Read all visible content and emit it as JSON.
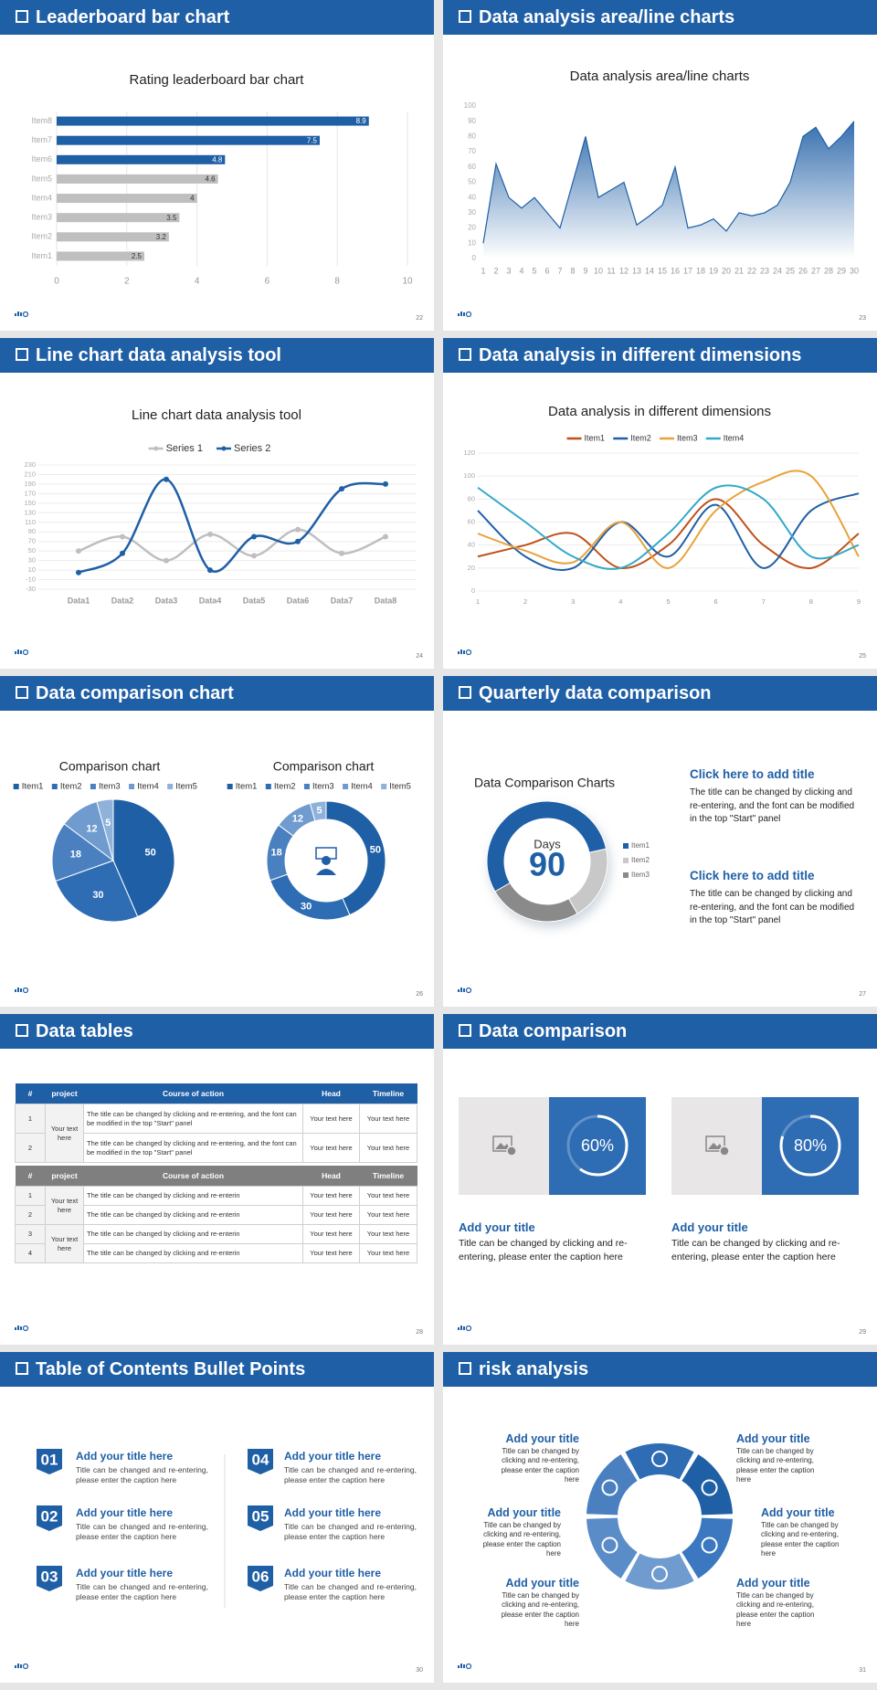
{
  "slides": [
    {
      "title": "Leaderboard bar chart",
      "page": 22,
      "chart_data": {
        "type": "hbar",
        "title": "Rating leaderboard bar chart",
        "categories": [
          "Item1",
          "Item2",
          "Item3",
          "Item4",
          "Item5",
          "Item6",
          "Item7",
          "Item8"
        ],
        "values": [
          2.5,
          3.2,
          3.5,
          4,
          4.6,
          4.8,
          7.5,
          8.9
        ],
        "colors": [
          "#bfbfbf",
          "#bfbfbf",
          "#bfbfbf",
          "#bfbfbf",
          "#bfbfbf",
          "#1f5fa6",
          "#1f5fa6",
          "#1f5fa6"
        ],
        "xlim": [
          0,
          10
        ],
        "xticks": [
          0,
          2,
          4,
          6,
          8,
          10
        ],
        "grid": true
      }
    },
    {
      "title": "Data analysis area/line charts",
      "page": 23,
      "chart_data": {
        "type": "area",
        "title": "Data analysis area/line charts",
        "x": [
          1,
          2,
          3,
          4,
          5,
          6,
          7,
          8,
          9,
          10,
          11,
          12,
          13,
          14,
          15,
          16,
          17,
          18,
          19,
          20,
          21,
          22,
          23,
          24,
          25,
          26,
          27,
          28,
          29,
          30
        ],
        "values": [
          10,
          62,
          40,
          33,
          40,
          30,
          20,
          50,
          80,
          40,
          45,
          50,
          22,
          28,
          35,
          60,
          20,
          22,
          26,
          18,
          30,
          28,
          30,
          35,
          50,
          80,
          86,
          72,
          80,
          90
        ],
        "color": "#1f5fa6",
        "xlim": [
          1,
          30
        ],
        "ylim": [
          0,
          100
        ],
        "yticks": [
          0,
          10,
          20,
          30,
          40,
          50,
          60,
          70,
          80,
          90,
          100
        ],
        "grid": false
      }
    },
    {
      "title": "Line chart data analysis tool",
      "page": 24,
      "chart_data": {
        "type": "line",
        "smooth": true,
        "markers": true,
        "title": "Line chart data analysis tool",
        "categories": [
          "Data1",
          "Data2",
          "Data3",
          "Data4",
          "Data5",
          "Data6",
          "Data7",
          "Data8"
        ],
        "series": [
          {
            "name": "Series 1",
            "color": "#bfbfbf",
            "values": [
              50,
              80,
              30,
              85,
              40,
              95,
              45,
              80
            ]
          },
          {
            "name": "Series 2",
            "color": "#1f5fa6",
            "values": [
              5,
              45,
              200,
              10,
              80,
              70,
              180,
              190
            ]
          }
        ],
        "ylim": [
          -30,
          230
        ],
        "yticks": [
          -30,
          -10,
          10,
          30,
          50,
          70,
          90,
          110,
          130,
          150,
          170,
          190,
          210,
          230
        ],
        "grid": true
      }
    },
    {
      "title": "Data analysis in different dimensions",
      "page": 25,
      "chart_data": {
        "type": "line",
        "smooth": true,
        "markers": false,
        "title": "Data analysis in different dimensions",
        "x": [
          1,
          2,
          3,
          4,
          5,
          6,
          7,
          8,
          9
        ],
        "series": [
          {
            "name": "Item1",
            "color": "#c0501a",
            "values": [
              30,
              40,
              50,
              20,
              40,
              80,
              40,
              20,
              50
            ]
          },
          {
            "name": "Item2",
            "color": "#1f5fa6",
            "values": [
              70,
              30,
              20,
              60,
              30,
              75,
              20,
              70,
              85
            ]
          },
          {
            "name": "Item3",
            "color": "#e9a23b",
            "values": [
              50,
              35,
              25,
              60,
              20,
              70,
              95,
              100,
              30
            ]
          },
          {
            "name": "Item4",
            "color": "#33a9c9",
            "values": [
              90,
              60,
              30,
              20,
              50,
              90,
              80,
              30,
              40
            ]
          }
        ],
        "xlim": [
          1,
          9
        ],
        "ylim": [
          0,
          120
        ],
        "yticks": [
          0,
          20,
          40,
          60,
          80,
          100,
          120
        ],
        "grid": true
      }
    },
    {
      "title": "Data comparison chart",
      "page": 26,
      "chart_data": [
        {
          "type": "pie",
          "title": "Comparison chart",
          "categories": [
            "Item1",
            "Item2",
            "Item3",
            "Item4",
            "Item5"
          ],
          "values": [
            50,
            30,
            18,
            12,
            5
          ],
          "colors": [
            "#1f5fa6",
            "#2e6db4",
            "#4a80c0",
            "#6f9bcf",
            "#8fb2da"
          ]
        },
        {
          "type": "donut",
          "title": "Comparison chart",
          "categories": [
            "Item1",
            "Item2",
            "Item3",
            "Item4",
            "Item5"
          ],
          "values": [
            50,
            30,
            18,
            12,
            5
          ],
          "colors": [
            "#1f5fa6",
            "#2e6db4",
            "#4a80c0",
            "#6f9bcf",
            "#8fb2da"
          ]
        }
      ]
    },
    {
      "title": "Quarterly data comparison",
      "page": 27,
      "chart_data": {
        "type": "donut",
        "title": "Data Comparison Charts",
        "categories": [
          "Item1",
          "Item2",
          "Item3"
        ],
        "values": [
          55,
          20,
          25
        ],
        "colors": [
          "#1f5fa6",
          "#c8c8c8",
          "#8a8a8a"
        ],
        "center_title": "Days",
        "center_value": 90
      },
      "blocks": [
        {
          "title": "Click here to add title",
          "text": "The title can be changed by clicking and re-entering, and the font can be modified in the top \"Start\" panel"
        },
        {
          "title": "Click here to add title",
          "text": "The title can be changed by clicking and re-entering, and the font can be modified in the top \"Start\" panel"
        }
      ]
    },
    {
      "title": "Data tables",
      "page": 28,
      "tables": [
        {
          "header_color": "#1f5fa6",
          "columns": [
            "#",
            "project",
            "Course of action",
            "Head",
            "Timeline"
          ],
          "groups": [
            {
              "project": "Your text here",
              "rows": [
                [
                  "1",
                  "The title can be changed by clicking and re-entering, and the font can be modified in the top \"Start\" panel",
                  "Your text here",
                  "Your text here"
                ],
                [
                  "2",
                  "The title can be changed by clicking and re-entering, and the font can be modified in the top \"Start\" panel",
                  "Your text here",
                  "Your text here"
                ]
              ]
            }
          ]
        },
        {
          "header_color": "#7f7f7f",
          "columns": [
            "#",
            "project",
            "Course of action",
            "Head",
            "Timeline"
          ],
          "groups": [
            {
              "project": "Your text here",
              "rows": [
                [
                  "1",
                  "The title can be changed by clicking and re-enterin",
                  "Your text here",
                  "Your text here"
                ],
                [
                  "2",
                  "The title can be changed by clicking and re-enterin",
                  "Your text here",
                  "Your text here"
                ]
              ]
            },
            {
              "project": "Your text here",
              "rows": [
                [
                  "3",
                  "The title can be changed by clicking and re-enterin",
                  "Your text here",
                  "Your text here"
                ],
                [
                  "4",
                  "The title can be changed by clicking and re-enterin",
                  "Your text here",
                  "Your text here"
                ]
              ]
            }
          ]
        }
      ]
    },
    {
      "title": "Data comparison",
      "page": 29,
      "gauges": {
        "values": [
          60,
          80
        ],
        "value_labels": [
          "60%",
          "80%"
        ],
        "color": "#2e6db4"
      },
      "captions": [
        {
          "title": "Add your title",
          "text": "Title can be changed by clicking and re-entering, please enter the caption here"
        },
        {
          "title": "Add your title",
          "text": "Title can be changed by clicking and re-entering, please enter the caption here"
        }
      ]
    },
    {
      "title": "Table of Contents Bullet Points",
      "page": 30,
      "items": [
        {
          "number": "01",
          "title": "Add your title here",
          "text": "Title can be changed and re-entering, please enter the caption here"
        },
        {
          "number": "02",
          "title": "Add your title here",
          "text": "Title can be changed and re-entering, please enter the caption here"
        },
        {
          "number": "03",
          "title": "Add your title here",
          "text": "Title can be changed and re-entering, please enter the caption here"
        },
        {
          "number": "04",
          "title": "Add your title here",
          "text": "Title can be changed and re-entering, please enter the caption here"
        },
        {
          "number": "05",
          "title": "Add your title here",
          "text": "Title can be changed and re-entering, please enter the caption here"
        },
        {
          "number": "06",
          "title": "Add your title here",
          "text": "Title can be changed and re-entering, please enter the caption here"
        }
      ]
    },
    {
      "title": "risk analysis",
      "page": 31,
      "items": [
        {
          "title": "Add your title",
          "text": "Title can be changed by clicking and re-entering, please enter the caption here"
        },
        {
          "title": "Add your title",
          "text": "Title can be changed by clicking and re-entering, please enter the caption here"
        },
        {
          "title": "Add your title",
          "text": "Title can be changed by clicking and re-entering, please enter the caption here"
        },
        {
          "title": "Add your title",
          "text": "Title can be changed by clicking and re-entering, please enter the caption here"
        },
        {
          "title": "Add your title",
          "text": "Title can be changed by clicking and re-entering, please enter the caption here"
        },
        {
          "title": "Add your title",
          "text": "Title can be changed by clicking and re-entering, please enter the caption here"
        }
      ]
    }
  ]
}
